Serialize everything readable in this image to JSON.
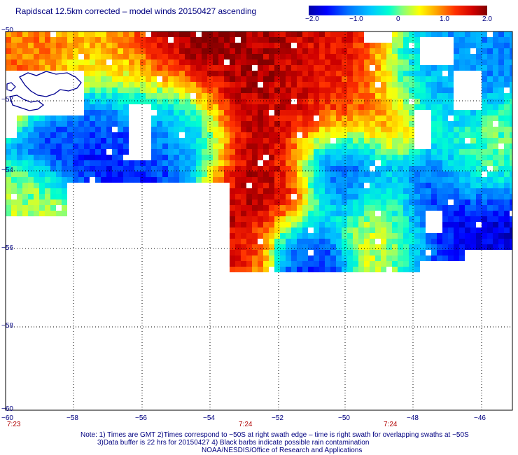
{
  "title": "Rapidscat 12.5km corrected – model winds 20150427 ascending",
  "colorbar": {
    "labels": [
      "−2.0",
      "−1.0",
      "0",
      "1.0",
      "2.0"
    ],
    "min": -2.0,
    "max": 2.0
  },
  "axes": {
    "y_labels": [
      "−50",
      "−52",
      "−54",
      "−56",
      "−58",
      "−60"
    ],
    "x_labels": [
      "−60",
      "−58",
      "−56",
      "−54",
      "−52",
      "−50",
      "−48",
      "−46"
    ]
  },
  "times": [
    "7:23",
    "7:24",
    "7:24"
  ],
  "notes": [
    "Note: 1) Times are GMT 2)Times correspond to −50S at right swath edge – time is right swath for overlapping swaths at −50S",
    "3)Data buffer is 22 hrs for 20150427 4) Black barbs indicate possible rain contamination",
    "NOAA/NESDIS/Office of Research and Applications"
  ],
  "colors": {
    "text": "#000080",
    "time_labels": "#b00000",
    "gridlines": "#000000"
  }
}
